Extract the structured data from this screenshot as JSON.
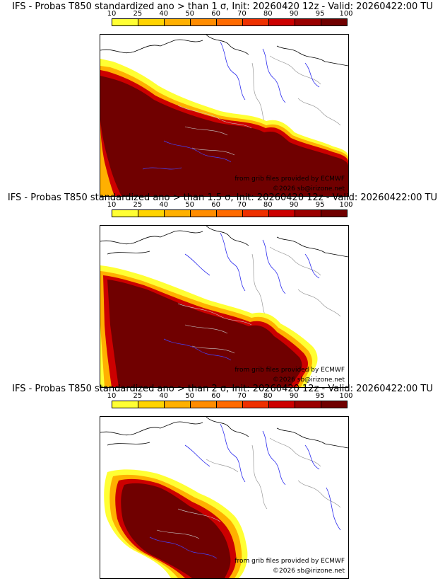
{
  "colorbar": {
    "ticks": [
      "10",
      "25",
      "40",
      "50",
      "60",
      "70",
      "80",
      "90",
      "95",
      "100"
    ],
    "colors": [
      "#ffff33",
      "#ffd400",
      "#ffb000",
      "#ff8c00",
      "#ff6a00",
      "#ee3000",
      "#cc0000",
      "#9a0000",
      "#700000"
    ]
  },
  "credits": {
    "provider": "from grib files provided by ECMWF",
    "copyright": "©2026 sb@irizone.net"
  },
  "panels": [
    {
      "title": "IFS - Probas T850  standardized ano > than 1 σ, Init: 20260420 12z - Valid: 20260422:00 TU",
      "threshold_sigma": 1
    },
    {
      "title": "IFS - Probas T850  standardized ano > than 1.5 σ, Init: 20260420 12z - Valid: 20260422:00 TU",
      "threshold_sigma": 1.5
    },
    {
      "title": "IFS - Probas T850  standardized ano > than 2 σ, Init: 20260420 12z - Valid: 20260422:00 TU",
      "threshold_sigma": 2
    }
  ]
}
